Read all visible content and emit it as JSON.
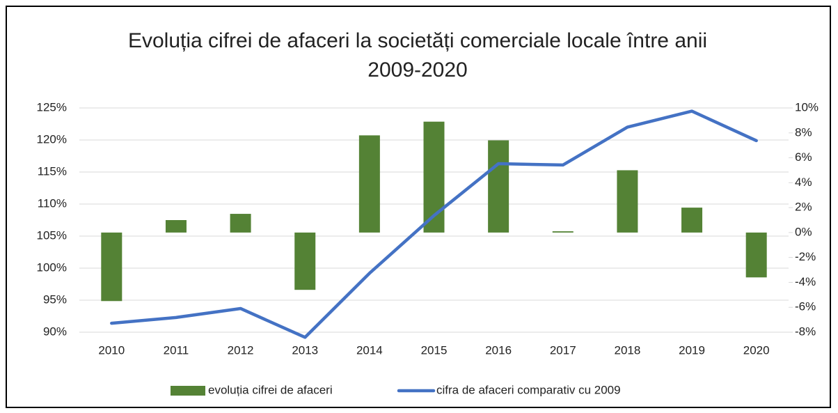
{
  "chart_data": {
    "type": "bar-line",
    "title": "Evoluția cifrei de afaceri la societăți comerciale locale între anii 2009-2020",
    "categories": [
      "2010",
      "2011",
      "2012",
      "2013",
      "2014",
      "2015",
      "2016",
      "2017",
      "2018",
      "2019",
      "2020"
    ],
    "series": [
      {
        "name": "evoluția cifrei de afaceri",
        "type": "bar",
        "axis": "y2",
        "color": "#548235",
        "values": [
          -5.5,
          1.0,
          1.5,
          -4.6,
          7.8,
          8.9,
          7.4,
          0.1,
          5.0,
          2.0,
          -3.6
        ]
      },
      {
        "name": "cifra de afaceri comparativ cu 2009",
        "type": "line",
        "axis": "y",
        "color": "#4472c4",
        "values": [
          91.4,
          92.3,
          93.7,
          89.2,
          99.2,
          108.2,
          116.3,
          116.1,
          122.0,
          124.5,
          119.9
        ]
      }
    ],
    "ylim": [
      90,
      125
    ],
    "yticks": [
      {
        "value": 90,
        "label": "90%"
      },
      {
        "value": 95,
        "label": "95%"
      },
      {
        "value": 100,
        "label": "100%"
      },
      {
        "value": 105,
        "label": "105%"
      },
      {
        "value": 110,
        "label": "110%"
      },
      {
        "value": 115,
        "label": "115%"
      },
      {
        "value": 120,
        "label": "120%"
      },
      {
        "value": 125,
        "label": "125%"
      }
    ],
    "y2lim": [
      -8,
      10
    ],
    "y2ticks": [
      {
        "value": -8,
        "label": "-8%"
      },
      {
        "value": -6,
        "label": "-6%"
      },
      {
        "value": -4,
        "label": "-4%"
      },
      {
        "value": -2,
        "label": "-2%"
      },
      {
        "value": 0,
        "label": "0%"
      },
      {
        "value": 2,
        "label": "2%"
      },
      {
        "value": 4,
        "label": "4%"
      },
      {
        "value": 6,
        "label": "6%"
      },
      {
        "value": 8,
        "label": "8%"
      },
      {
        "value": 10,
        "label": "10%"
      }
    ],
    "grid": true,
    "legend": "bottom"
  }
}
